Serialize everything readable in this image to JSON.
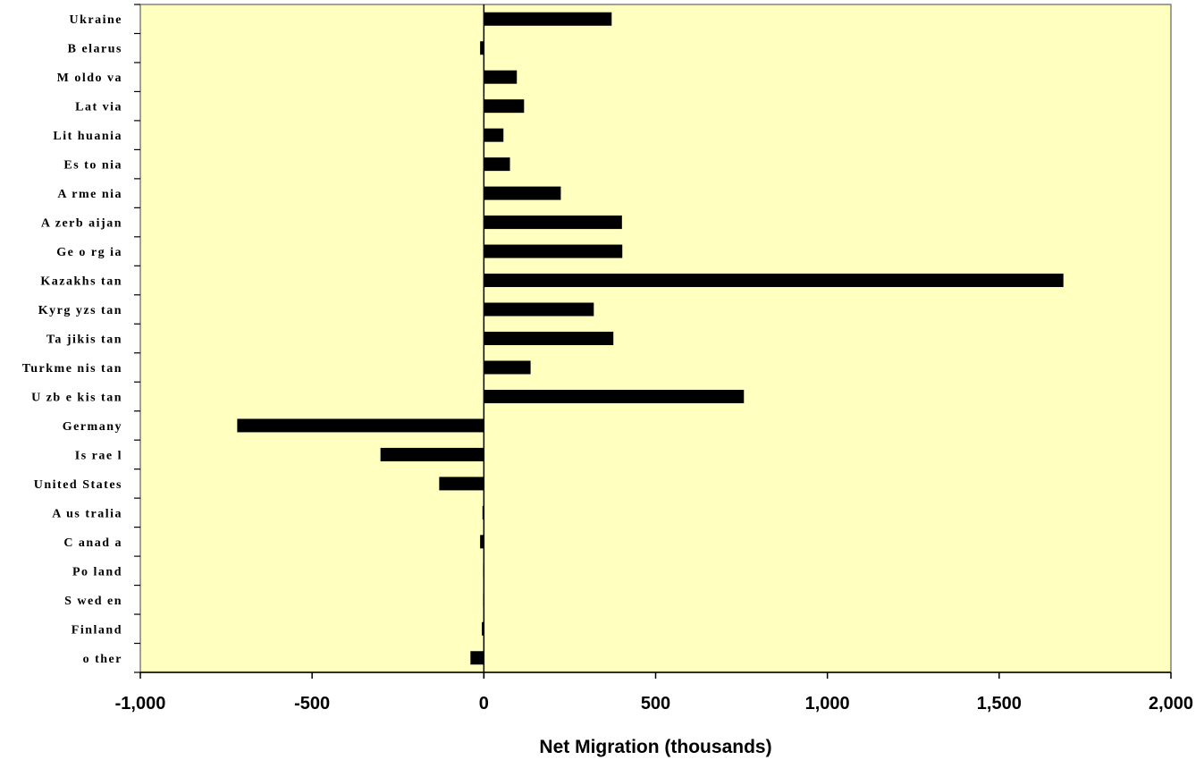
{
  "chart_data": {
    "type": "bar",
    "orientation": "horizontal",
    "categories": [
      "Ukraine",
      "Belarus",
      "Moldova",
      "Latvia",
      "Lithuania",
      "Estonia",
      "Armenia",
      "Azerbaijan",
      "Georgia",
      "Kazakhstan",
      "Kyrgyzstan",
      "Tajikistan",
      "Turkmenistan",
      "Uzbekistan",
      "Germany",
      "Israel",
      "United States",
      "Australia",
      "Canada",
      "Poland",
      "Sweden",
      "Finland",
      "other"
    ],
    "category_labels": [
      "Ukraine",
      "B elarus",
      "M oldo va",
      "Lat via",
      "Lit huania",
      "Es to nia",
      "A rme nia",
      "A zerb aijan",
      "Ge o rg ia",
      "Kazakhs tan",
      "Kyrg yzs tan",
      "Ta jikis tan",
      "Turkme nis tan",
      "U zb e kis tan",
      "Germany",
      "Is rae l",
      "United States",
      "A us tralia",
      "C anad a",
      "Po land",
      "S wed en",
      "Finland",
      "o ther"
    ],
    "values": [
      372,
      -11,
      96,
      117,
      57,
      76,
      224,
      402,
      403,
      1687,
      320,
      377,
      136,
      757,
      -718,
      -301,
      -130,
      -4,
      -11,
      -2,
      -2,
      -6,
      -39
    ],
    "xlim": [
      -1000,
      2000
    ],
    "xticks": [
      -1000,
      -500,
      0,
      500,
      1000,
      1500,
      2000
    ],
    "xtick_labels": [
      "-1,000",
      "-500",
      "0",
      "500",
      "1,000",
      "1,500",
      "2,000"
    ],
    "xlabel": "Net Migration (thousands)",
    "title": "",
    "grid": false,
    "legend": "none",
    "colors": {
      "plot_background": "#FFFFC0",
      "bar": "#000000",
      "axis": "#000000",
      "page_background": "#FFFFFF"
    }
  }
}
